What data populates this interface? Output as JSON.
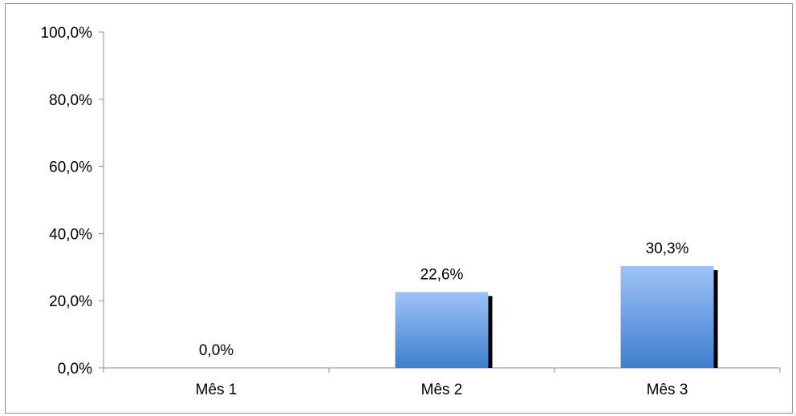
{
  "chart_data": {
    "type": "bar",
    "categories": [
      "Mês 1",
      "Mês 2",
      "Mês 3"
    ],
    "values": [
      0.0,
      22.6,
      30.3
    ],
    "data_labels": [
      "0,0%",
      "22,6%",
      "30,3%"
    ],
    "title": "",
    "xlabel": "",
    "ylabel": "",
    "ylim": [
      0,
      100
    ],
    "yticks": [
      0,
      20,
      40,
      60,
      80,
      100
    ],
    "ytick_labels": [
      "0,0%",
      "20,0%",
      "40,0%",
      "60,0%",
      "80,0%",
      "100,0%"
    ],
    "grid": false,
    "legend": "none",
    "colors": {
      "bar_top": "#9DC3F7",
      "bar_bottom": "#3E7FCF",
      "shadow": "#000000",
      "axis": "#8c8c8c"
    }
  }
}
